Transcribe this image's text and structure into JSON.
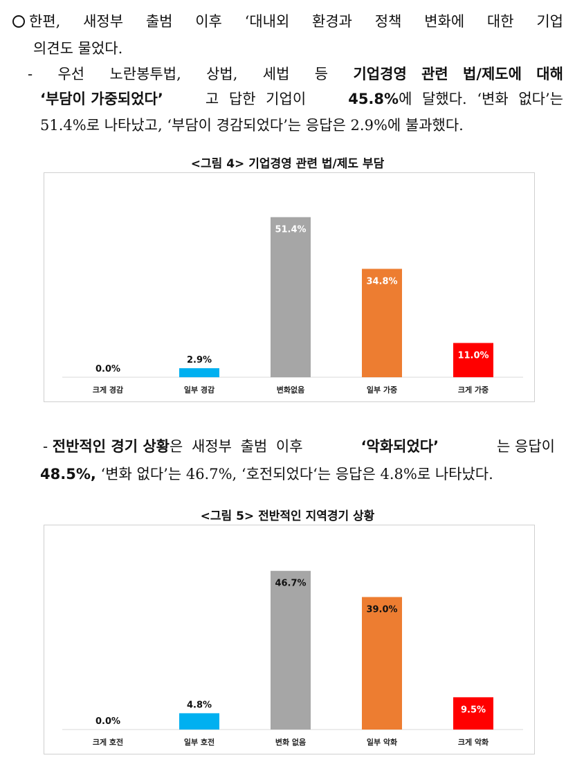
{
  "paragraph1": {
    "bullet_line1_parts": [
      "한편,",
      "새정부",
      "출범",
      "이후",
      "‘대내외",
      "환경과",
      "정책",
      "변화에",
      "대한",
      "기업"
    ],
    "line2": "의견도 물었다.",
    "dash_line_parts": [
      "-",
      "우선",
      "노란봉투법,",
      "상법,",
      "세법",
      "등"
    ],
    "dash_line_bold": "기업경영 관련 법/제도에 대해",
    "line4_bold": "‘부담이 가중되었다’",
    "line4_mid": "고 답한 기업이",
    "line4_num": "45.8%",
    "line4_tail": "에 달했다. ‘변화 없다’는",
    "line5": "51.4%로 나타났고, ‘부담이 경감되었다’는 응답은 2.9%에 불과했다."
  },
  "figure4": {
    "title": "<그림 4> 기업경영 관련 법/제도 부담"
  },
  "paragraph2": {
    "dash": "-",
    "bold1": "전반적인 경기 상황",
    "mid1": "은 새정부 출범 이후",
    "bold2": "‘악화되었다’",
    "tail1": "는 응답이",
    "num": "48.5%,",
    "line2_tail": "‘변화 없다’는 46.7%, ‘호전되었다‘는 응답은  4.8%로 나타났다."
  },
  "figure5": {
    "title": "<그림 5> 전반적인 지역경기 상황"
  },
  "chart_data": [
    {
      "type": "bar",
      "title": "<그림 4> 기업경영 관련 법/제도 부담",
      "categories": [
        "크게 경감",
        "일부 경감",
        "변화없음",
        "일부 가중",
        "크게 가중"
      ],
      "values": [
        0.0,
        2.9,
        51.4,
        34.8,
        11.0
      ],
      "labels": [
        "0.0%",
        "2.9%",
        "51.4%",
        "34.8%",
        "11.0%"
      ],
      "colors": [
        "#bfbfbf",
        "#00b0f0",
        "#a6a6a6",
        "#ed7d31",
        "#ff0000"
      ],
      "label_colors": [
        "#111111",
        "#111111",
        "#ffffff",
        "#ffffff",
        "#ffffff"
      ],
      "label_inside": [
        false,
        false,
        true,
        true,
        true
      ],
      "ylim": [
        0,
        60
      ],
      "grid": false
    },
    {
      "type": "bar",
      "title": "<그림 5> 전반적인 지역경기 상황",
      "categories": [
        "크게 호전",
        "일부 호전",
        "변화 없음",
        "일부 악화",
        "크게 악화"
      ],
      "values": [
        0.0,
        4.8,
        46.7,
        39.0,
        9.5
      ],
      "labels": [
        "0.0%",
        "4.8%",
        "46.7%",
        "39.0%",
        "9.5%"
      ],
      "colors": [
        "#bfbfbf",
        "#00b0f0",
        "#a6a6a6",
        "#ed7d31",
        "#ff0000"
      ],
      "label_colors": [
        "#111111",
        "#111111",
        "#111111",
        "#111111",
        "#ffffff"
      ],
      "label_inside": [
        false,
        false,
        true,
        true,
        true
      ],
      "ylim": [
        0,
        55
      ],
      "grid": false
    }
  ]
}
